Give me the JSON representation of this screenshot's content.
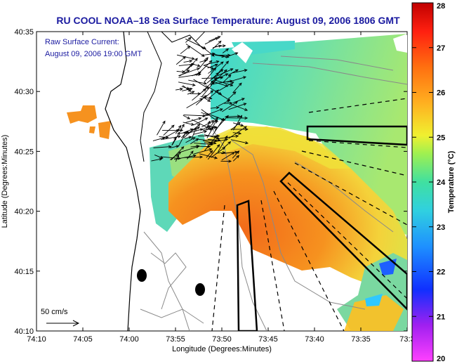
{
  "title": "RU COOL  NOAA–18  Sea Surface Temperature:  August 09, 2006 1806 GMT",
  "annotation": {
    "line1": "Raw Surface Current:",
    "line2": "August 09, 2006 19:00 GMT"
  },
  "scale_label": "50 cm/s",
  "xlabel": "Longitude (Degrees:Minutes)",
  "ylabel": "Latitude (Degrees:Minutes)",
  "xticks": [
    "74:10",
    "74:05",
    "74:00",
    "73:55",
    "73:50",
    "73:45",
    "73:40",
    "73:35",
    "73:3"
  ],
  "yticks": [
    "40:35",
    "40:30",
    "40:25",
    "40:20",
    "40:15",
    "40:10"
  ],
  "colorbar": {
    "label": "Temperature (°C)",
    "ticks": [
      "28",
      "27",
      "26",
      "25",
      "24",
      "23",
      "22",
      "21",
      "20"
    ]
  },
  "colors": {
    "title": "#1a1aa0",
    "annotation": "#1a1aa0",
    "sst_warm": "#f07a1e",
    "sst_mid": "#f2e43a",
    "sst_cool": "#3ecbd8"
  }
}
